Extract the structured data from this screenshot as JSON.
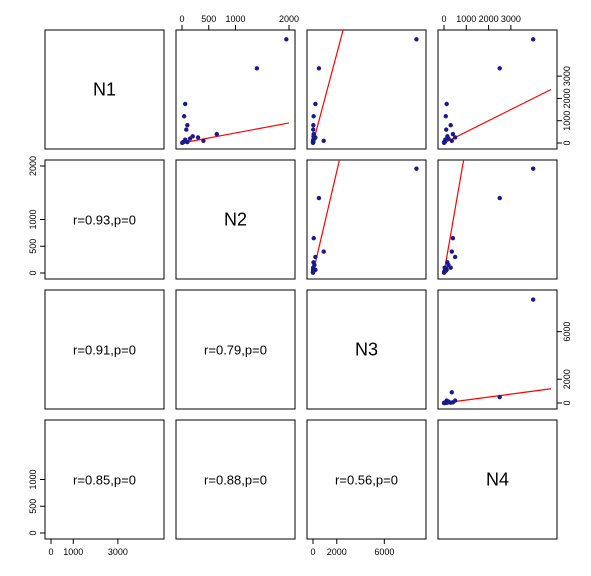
{
  "chart_data": {
    "type": "scatter",
    "variables": [
      "N1",
      "N2",
      "N3",
      "N4"
    ],
    "ranges": {
      "N1": [
        0,
        4800
      ],
      "N2": [
        0,
        2000
      ],
      "N3": [
        0,
        9000
      ],
      "N4": [
        0,
        4800
      ]
    },
    "ticks": {
      "N1": [
        0,
        1000,
        3000
      ],
      "N2": [
        0,
        500,
        1000,
        2000
      ],
      "N3": [
        0,
        2000,
        6000
      ],
      "N4": [
        0,
        1000,
        2000,
        3000
      ]
    },
    "tick_label_overrides": {
      "N1": {
        "top": [
          0,
          500,
          1000,
          2000
        ],
        "left": [
          0,
          500,
          1000
        ]
      },
      "N3": {
        "right": [
          0,
          2000,
          6000
        ]
      }
    },
    "correlations": [
      {
        "row": 1,
        "col": 0,
        "label": "r=0.93,p=0"
      },
      {
        "row": 2,
        "col": 0,
        "label": "r=0.91,p=0"
      },
      {
        "row": 2,
        "col": 1,
        "label": "r=0.79,p=0"
      },
      {
        "row": 3,
        "col": 0,
        "label": "r=0.85,p=0"
      },
      {
        "row": 3,
        "col": 1,
        "label": "r=0.88,p=0"
      },
      {
        "row": 3,
        "col": 2,
        "label": "r=0.56,p=0"
      }
    ],
    "points": [
      {
        "N1": 4650,
        "N2": 1950,
        "N3": 8700,
        "N4": 4000
      },
      {
        "N1": 3350,
        "N2": 1400,
        "N3": 500,
        "N4": 2500
      },
      {
        "N1": 1750,
        "N2": 60,
        "N3": 200,
        "N4": 120
      },
      {
        "N1": 1200,
        "N2": 40,
        "N3": 50,
        "N4": 80
      },
      {
        "N1": 800,
        "N2": 100,
        "N3": 30,
        "N4": 300
      },
      {
        "N1": 600,
        "N2": 80,
        "N3": 20,
        "N4": 100
      },
      {
        "N1": 400,
        "N2": 650,
        "N3": 60,
        "N4": 400
      },
      {
        "N1": 300,
        "N2": 200,
        "N3": 40,
        "N4": 150
      },
      {
        "N1": 250,
        "N2": 300,
        "N3": 200,
        "N4": 500
      },
      {
        "N1": 200,
        "N2": 150,
        "N3": 120,
        "N4": 200
      },
      {
        "N1": 150,
        "N2": 60,
        "N3": 30,
        "N4": 60
      },
      {
        "N1": 100,
        "N2": 400,
        "N3": 900,
        "N4": 350
      },
      {
        "N1": 80,
        "N2": 50,
        "N3": 10,
        "N4": 40
      },
      {
        "N1": 50,
        "N2": 30,
        "N3": 5,
        "N4": 20
      },
      {
        "N1": 40,
        "N2": 100,
        "N3": 20,
        "N4": 30
      },
      {
        "N1": 30,
        "N2": 20,
        "N3": 5,
        "N4": 10
      },
      {
        "N1": 20,
        "N2": 10,
        "N3": 2,
        "N4": 5
      },
      {
        "N1": 10,
        "N2": 5,
        "N3": 1,
        "N4": 2
      }
    ],
    "regression": [
      {
        "x": "N2",
        "y": "N1",
        "slope": 0.45,
        "intercept": 0
      },
      {
        "x": "N3",
        "y": "N1",
        "slope": 2.0,
        "intercept": 0
      },
      {
        "x": "N4",
        "y": "N1",
        "slope": 0.5,
        "intercept": 0
      },
      {
        "x": "N3",
        "y": "N2",
        "slope": 0.95,
        "intercept": 0
      },
      {
        "x": "N4",
        "y": "N2",
        "slope": 2.4,
        "intercept": 0
      },
      {
        "x": "N4",
        "y": "N3",
        "slope": 0.25,
        "intercept": 0
      }
    ],
    "colors": {
      "point": "#1a1a8c",
      "line": "#ff0000",
      "frame": "#000000"
    }
  }
}
